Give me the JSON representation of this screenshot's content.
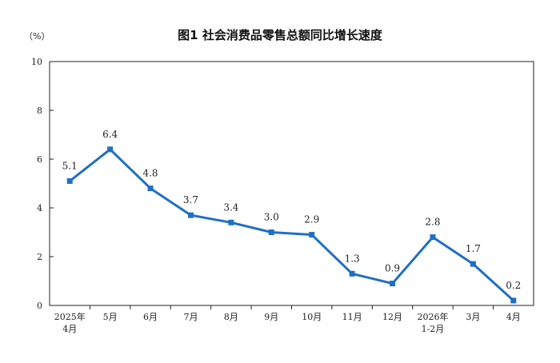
{
  "chart_data": {
    "type": "line",
    "title": "图1  社会消费品零售总额同比增长速度",
    "ylabel": "（%）",
    "xlabel": "",
    "ylim": [
      0,
      10
    ],
    "yticks": [
      "0",
      "2",
      "4",
      "6",
      "8",
      "10"
    ],
    "grid": false,
    "legend": "none",
    "categories": [
      [
        "2025年",
        "4月"
      ],
      [
        "5月"
      ],
      [
        "6月"
      ],
      [
        "7月"
      ],
      [
        "8月"
      ],
      [
        "9月"
      ],
      [
        "10月"
      ],
      [
        "11月"
      ],
      [
        "12月"
      ],
      [
        "2026年",
        "1-2月"
      ],
      [
        "3月"
      ],
      [
        "4月"
      ]
    ],
    "series": [
      {
        "values": [
          5.1,
          6.4,
          4.8,
          3.7,
          3.4,
          3.0,
          2.9,
          1.3,
          0.9,
          2.8,
          1.7,
          0.2
        ],
        "labels": [
          "5.1",
          "6.4",
          "4.8",
          "3.7",
          "3.4",
          "3.0",
          "2.9",
          "1.3",
          "0.9",
          "2.8",
          "1.7",
          "0.2"
        ],
        "color": "#1f6fc5"
      }
    ]
  }
}
